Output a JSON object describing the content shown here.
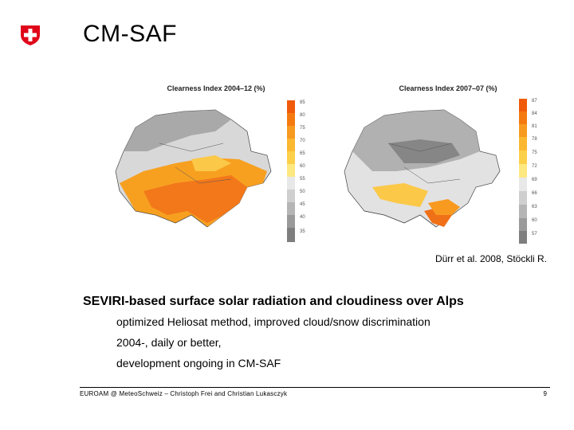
{
  "header": {
    "title": "CM-SAF",
    "logo_icon": "swiss-cross-icon",
    "logo_color": "#e0061a"
  },
  "maps": [
    {
      "title": "Clearness Index 2004–12 (%)",
      "colorbar_labels": [
        "85",
        "80",
        "75",
        "70",
        "65",
        "60",
        "55",
        "50",
        "45",
        "40",
        "35"
      ],
      "colorbar_colors": [
        "#f05a0a",
        "#f47a10",
        "#f89a20",
        "#fbb830",
        "#fdd04a",
        "#fee880",
        "#e8e8e8",
        "#cfcfcf",
        "#b5b5b5",
        "#9a9a9a",
        "#7e7e7e"
      ]
    },
    {
      "title": "Clearness Index 2007–07 (%)",
      "colorbar_labels": [
        "87",
        "84",
        "81",
        "78",
        "75",
        "72",
        "69",
        "66",
        "63",
        "60",
        "57"
      ],
      "colorbar_colors": [
        "#f05a0a",
        "#f47a10",
        "#f89a20",
        "#fbb830",
        "#fdd04a",
        "#fee880",
        "#e8e8e8",
        "#cfcfcf",
        "#b5b5b5",
        "#9a9a9a",
        "#7e7e7e"
      ]
    }
  ],
  "citation": "Dürr et al. 2008, Stöckli R.",
  "content": {
    "main_bullet": "SEVIRI-based surface solar radiation and cloudiness over Alps",
    "sub_bullets": [
      "optimized Heliosat method, improved cloud/snow discrimination",
      "2004-, daily or better,",
      "development ongoing in CM-SAF"
    ]
  },
  "footer": {
    "text": "EUROAM @ MeteoSchweiz – Christoph Frei and Christian Lukasczyk",
    "page_number": "9"
  }
}
